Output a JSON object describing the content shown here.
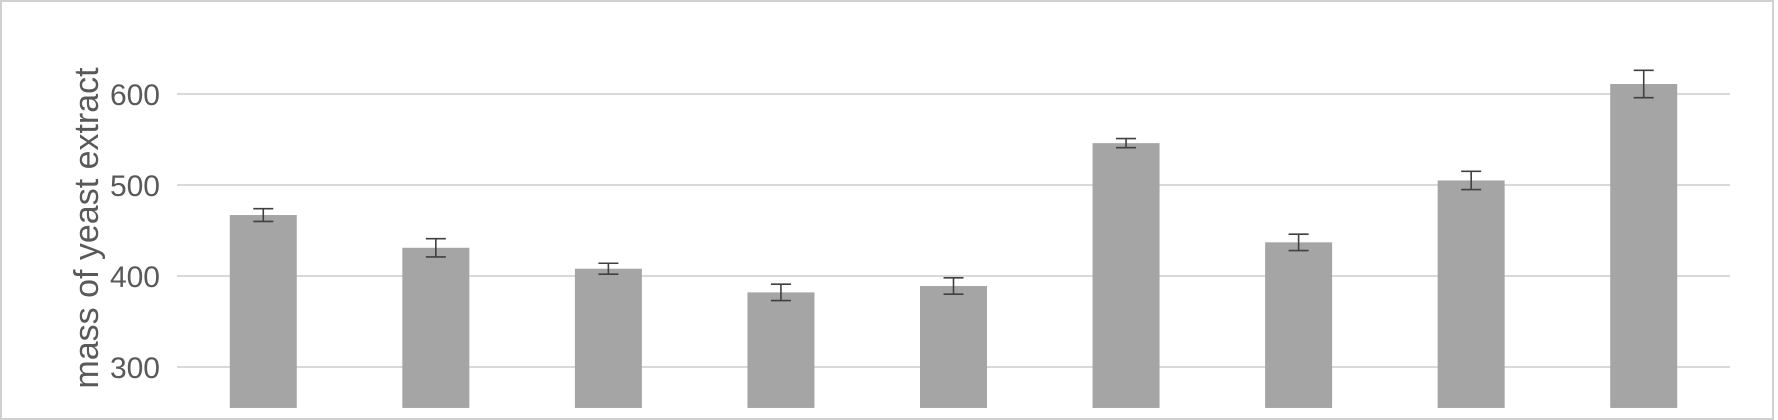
{
  "chart_data": {
    "type": "bar",
    "categories": [
      "",
      "",
      "",
      "",
      "",
      "",
      "",
      "",
      ""
    ],
    "values": [
      467,
      431,
      408,
      382,
      389,
      546,
      437,
      505,
      611
    ],
    "errors": [
      7,
      10,
      6,
      9,
      9,
      5,
      9,
      10,
      15
    ],
    "title": "",
    "xlabel": "",
    "ylabel": "mass of yeast extract",
    "yticks": [
      300,
      400,
      500,
      600
    ],
    "ylim": [
      255,
      670
    ],
    "grid": true,
    "legend": "none",
    "colors": {
      "bar": "#a5a5a5",
      "grid": "#d9d9d9",
      "error": "#404040",
      "text": "#595959"
    }
  }
}
